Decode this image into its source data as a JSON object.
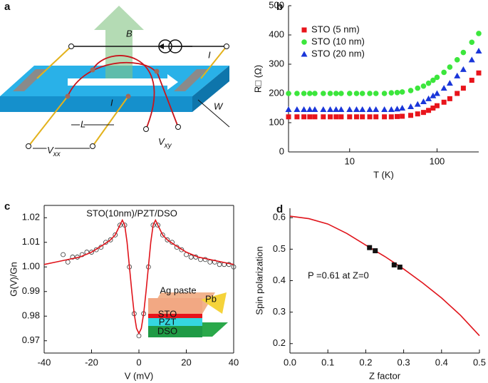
{
  "diagram": {
    "panel_label": "a",
    "labels": {
      "field": "B",
      "current_top": "I",
      "current_sample": "I",
      "length": "L",
      "width": "W"
    },
    "vxx": {
      "main": "V",
      "sub": "xx"
    },
    "vxy": {
      "main": "V",
      "sub": "xy"
    }
  },
  "chart_data": [
    {
      "type": "scatter",
      "panel_label": "b",
      "xlabel": "T (K)",
      "ylabel": "R□ (Ω)",
      "xscale": "log",
      "frame": "axes",
      "legend": "upper left",
      "xlim": [
        2,
        300
      ],
      "ylim": [
        0,
        500
      ],
      "xticks": [
        10,
        100
      ],
      "yticks": [
        0,
        100,
        200,
        300,
        400,
        500
      ],
      "x": [
        2,
        2.5,
        3,
        3.5,
        4,
        5,
        6,
        7,
        8,
        10,
        12,
        14,
        17,
        20,
        25,
        30,
        35,
        40,
        50,
        60,
        70,
        80,
        90,
        100,
        120,
        140,
        170,
        200,
        250,
        300
      ],
      "series": [
        {
          "name": "STO (5 nm)",
          "color": "#e8141b",
          "marker": "square",
          "values": [
            120,
            120,
            120,
            120,
            120,
            120,
            120,
            120,
            120,
            120,
            120,
            120,
            120,
            120,
            120,
            120,
            121,
            122,
            125,
            130,
            135,
            142,
            150,
            158,
            170,
            182,
            200,
            218,
            245,
            270
          ]
        },
        {
          "name": "STO (10 nm)",
          "color": "#3ce63c",
          "marker": "circle",
          "values": [
            200,
            200,
            200,
            200,
            200,
            200,
            200,
            200,
            200,
            200,
            200,
            200,
            200,
            200,
            200,
            202,
            203,
            205,
            210,
            218,
            225,
            235,
            245,
            255,
            272,
            290,
            315,
            340,
            375,
            405
          ]
        },
        {
          "name": "STO (20 nm)",
          "color": "#1a36d9",
          "marker": "triangle",
          "values": [
            145,
            145,
            145,
            145,
            145,
            145,
            145,
            145,
            145,
            145,
            145,
            145,
            145,
            145,
            145,
            145,
            147,
            150,
            155,
            163,
            172,
            182,
            192,
            200,
            218,
            235,
            260,
            282,
            315,
            345
          ]
        }
      ]
    },
    {
      "type": "line",
      "panel_label": "c",
      "title": "STO(10nm)/PZT/DSO",
      "xlabel": "V (mV)",
      "ylabel": "G(V)/Gn",
      "frame": "box",
      "xlim": [
        -40,
        40
      ],
      "ylim": [
        0.965,
        1.025
      ],
      "xticks": [
        -40,
        -20,
        0,
        20,
        40
      ],
      "yticks": [
        0.97,
        0.98,
        0.99,
        {
          "value": 1,
          "label": "1.00"
        },
        1.01,
        1.02
      ],
      "inset_labels": [
        "Ag paste",
        "Pb",
        "STO",
        "PZT",
        "DSO"
      ],
      "series": [
        {
          "color": "#333333",
          "marker": "open-circle",
          "x": [
            -32,
            -30,
            -28,
            -26,
            -24,
            -22,
            -20,
            -18,
            -16,
            -14,
            -12,
            -10,
            -8,
            -6,
            -4,
            -2,
            0,
            2,
            4,
            6,
            8,
            10,
            12,
            14,
            16,
            18,
            20,
            22,
            24,
            26,
            28,
            30,
            32,
            34,
            36,
            38,
            40
          ],
          "values": [
            1.005,
            1.002,
            1.004,
            1.004,
            1.005,
            1.006,
            1.006,
            1.007,
            1.008,
            1.01,
            1.011,
            1.013,
            1.017,
            1.017,
            1.0,
            0.981,
            0.972,
            0.981,
            1.0,
            1.017,
            1.017,
            1.013,
            1.011,
            1.01,
            1.008,
            1.007,
            1.005,
            1.004,
            1.004,
            1.003,
            1.003,
            1.002,
            1.002,
            1.001,
            1.001,
            1.001,
            1.0
          ]
        },
        {
          "color": "#e0141b",
          "x": [
            -40,
            -35,
            -30,
            -25,
            -20,
            -15,
            -12,
            -10,
            -9,
            -8,
            -7,
            -6,
            -5,
            -4,
            -3,
            -2,
            -1,
            0,
            1,
            2,
            3,
            4,
            5,
            6,
            7,
            8,
            9,
            10,
            12,
            15,
            20,
            25,
            30,
            35,
            40
          ],
          "values": [
            1.001,
            1.002,
            1.003,
            1.004,
            1.006,
            1.009,
            1.011,
            1.013,
            1.015,
            1.017,
            1.019,
            1.017,
            1.01,
            1.0,
            0.99,
            0.981,
            0.975,
            0.973,
            0.975,
            0.981,
            0.99,
            1.0,
            1.01,
            1.017,
            1.019,
            1.017,
            1.015,
            1.013,
            1.011,
            1.009,
            1.006,
            1.004,
            1.003,
            1.002,
            1.001
          ]
        }
      ]
    },
    {
      "type": "line",
      "panel_label": "d",
      "xlabel": "Z factor",
      "ylabel": "Spin polarization",
      "frame": "axes",
      "annotation": "P =0.61 at Z=0",
      "xlim": [
        0,
        0.5
      ],
      "ylim": [
        0.17,
        0.63
      ],
      "xticks": [
        {
          "value": 0,
          "label": "0.0"
        },
        0.1,
        0.2,
        0.3,
        0.4,
        0.5
      ],
      "yticks": [
        0.2,
        0.3,
        0.4,
        0.5,
        0.6
      ],
      "series": [
        {
          "color": "#e0141b",
          "x": [
            0,
            0.05,
            0.1,
            0.15,
            0.2,
            0.25,
            0.3,
            0.35,
            0.4,
            0.45,
            0.5
          ],
          "values": [
            0.605,
            0.597,
            0.58,
            0.55,
            0.513,
            0.477,
            0.437,
            0.393,
            0.345,
            0.29,
            0.225
          ]
        },
        {
          "color": "#111111",
          "marker": "square",
          "x": [
            0.21,
            0.225,
            0.275,
            0.29
          ],
          "values": [
            0.505,
            0.495,
            0.45,
            0.443
          ]
        }
      ]
    }
  ]
}
